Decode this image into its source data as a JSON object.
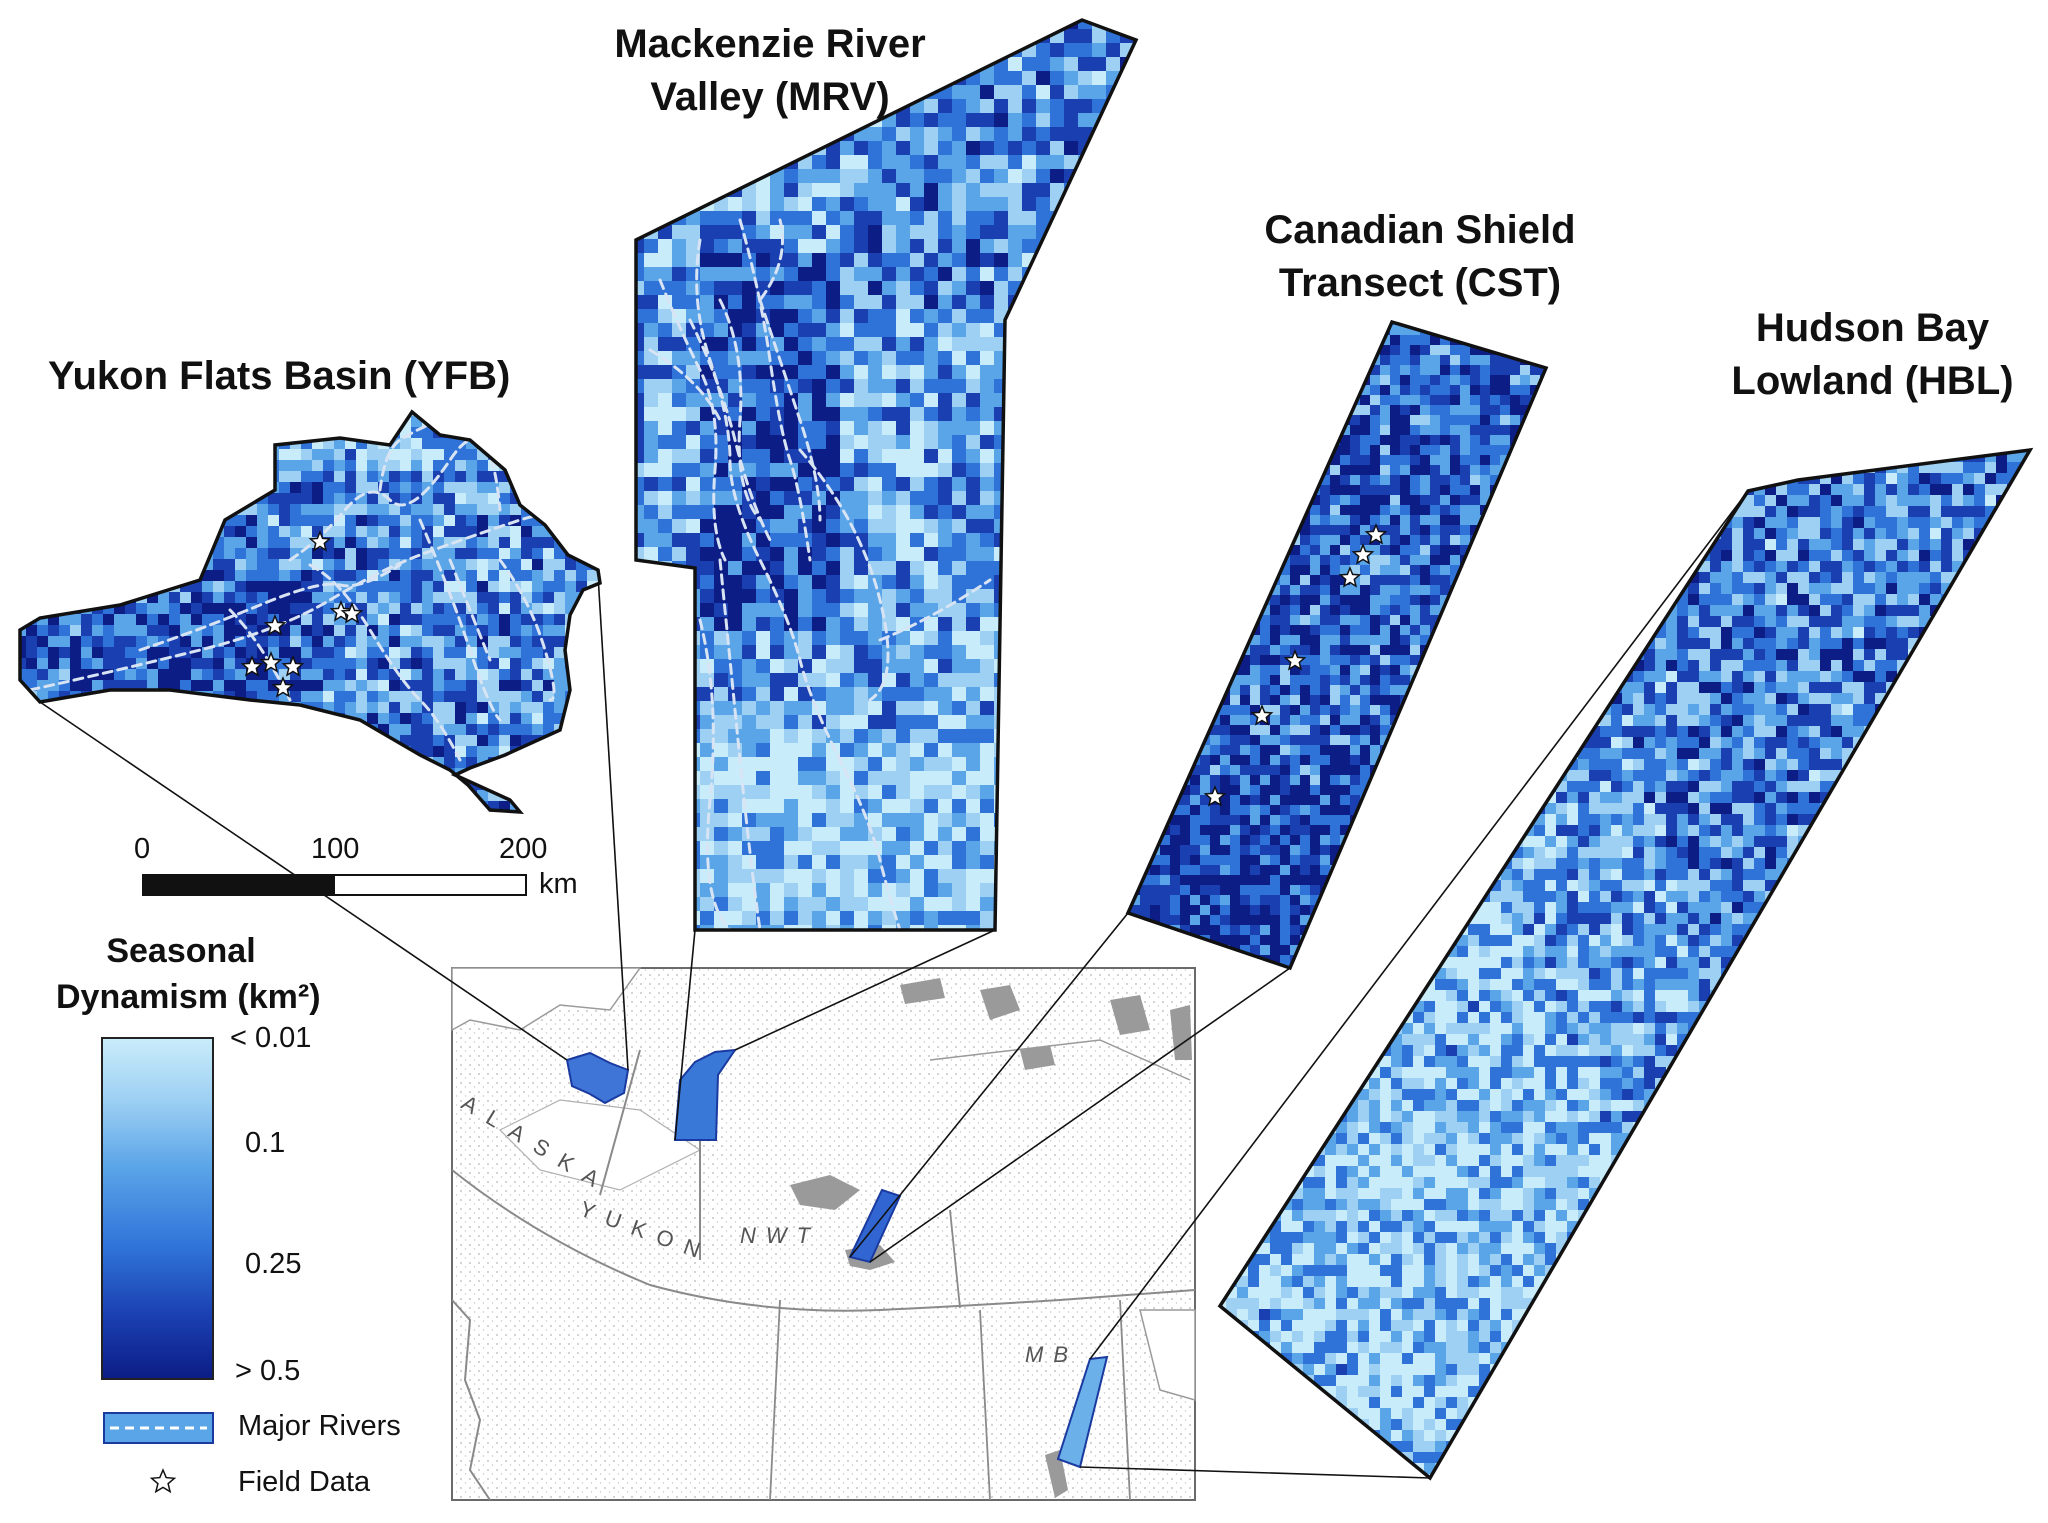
{
  "regions": {
    "yfb": {
      "title_line1": "Yukon Flats Basin (YFB)"
    },
    "mrv": {
      "title_line1": "Mackenzie River",
      "title_line2": "Valley (MRV)"
    },
    "cst": {
      "title_line1": "Canadian Shield",
      "title_line2": "Transect (CST)"
    },
    "hbl": {
      "title_line1": "Hudson Bay",
      "title_line2": "Lowland (HBL)"
    }
  },
  "scale_bar": {
    "tick_0": "0",
    "tick_100": "100",
    "tick_200": "200",
    "unit": "km"
  },
  "legend": {
    "title_line1": "Seasonal",
    "title_line2": "Dynamism (km²)",
    "tick_min": "< 0.01",
    "tick_01": "0.1",
    "tick_025": "0.25",
    "tick_max": "> 0.5",
    "rivers_label": "Major Rivers",
    "field_label": "Field Data"
  },
  "overview_map": {
    "alaska": "ALASKA",
    "yukon": "YUKON",
    "nwt": "NWT",
    "mb": "MB"
  },
  "colors": {
    "lightest": "#c9ecfa",
    "light": "#9dd0f3",
    "mid": "#5aa4e8",
    "dark": "#2f72d8",
    "darker": "#1a3fb0",
    "darkest": "#0c1d86",
    "river": "#d8e4f4",
    "outline": "#111111"
  },
  "icons": {
    "field_marker": "star-icon",
    "river_marker": "dashed-line-icon"
  }
}
